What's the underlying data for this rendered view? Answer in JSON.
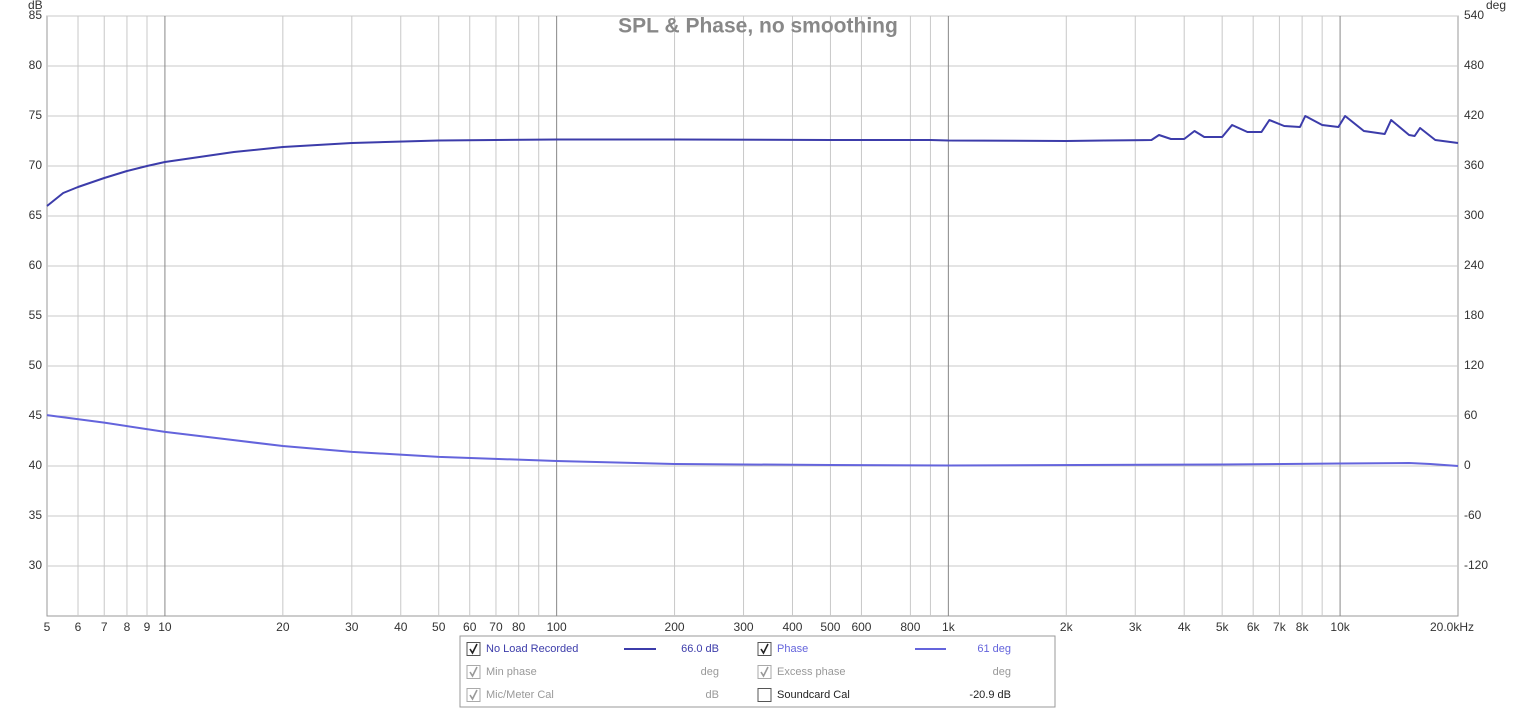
{
  "chart_data": {
    "type": "line",
    "title": "SPL & Phase, no smoothing",
    "ylabel": "dB",
    "y2label": "deg",
    "xscale": "log",
    "grid": true,
    "xlim": [
      5,
      20000
    ],
    "xticks": [
      5,
      6,
      7,
      8,
      9,
      10,
      20,
      30,
      40,
      50,
      60,
      70,
      80,
      100,
      200,
      300,
      400,
      500,
      600,
      800,
      {
        "value": 1000,
        "label": "1k"
      },
      {
        "value": 2000,
        "label": "2k"
      },
      {
        "value": 3000,
        "label": "3k"
      },
      {
        "value": 4000,
        "label": "4k"
      },
      {
        "value": 5000,
        "label": "5k"
      },
      {
        "value": 6000,
        "label": "6k"
      },
      {
        "value": 7000,
        "label": "7k"
      },
      {
        "value": 8000,
        "label": "8k"
      },
      {
        "value": 10000,
        "label": "10k"
      },
      {
        "value": 20000,
        "label": "20.0kHz"
      }
    ],
    "x_minor_ticks": [
      90,
      900,
      9000
    ],
    "ylim": [
      25,
      85
    ],
    "yticks": [
      30,
      35,
      40,
      45,
      50,
      55,
      60,
      65,
      70,
      75,
      80,
      85
    ],
    "y2lim": [
      -180,
      540
    ],
    "y2ticks": [
      -120,
      -60,
      0,
      60,
      120,
      180,
      240,
      300,
      360,
      420,
      480,
      540
    ],
    "series": [
      {
        "name": "No Load Recorded",
        "color": "#3c3caa",
        "readout": "66.0 dB",
        "checked": true,
        "x": [
          5,
          5.5,
          6,
          7,
          8,
          9,
          10,
          15,
          20,
          30,
          50,
          100,
          200,
          500,
          900,
          1000,
          2000,
          2500,
          3300,
          3450,
          3700,
          4000,
          4250,
          4500,
          5000,
          5300,
          5800,
          6300,
          6600,
          7200,
          7900,
          8150,
          9000,
          9900,
          10300,
          11500,
          13000,
          13500,
          15000,
          15500,
          16000,
          17500,
          20000
        ],
        "values": [
          66.0,
          67.3,
          67.9,
          68.8,
          69.5,
          70.0,
          70.4,
          71.4,
          71.9,
          72.3,
          72.55,
          72.65,
          72.65,
          72.6,
          72.6,
          72.55,
          72.5,
          72.55,
          72.6,
          73.1,
          72.7,
          72.7,
          73.5,
          72.9,
          72.9,
          74.1,
          73.4,
          73.4,
          74.6,
          74.0,
          73.9,
          75.0,
          74.1,
          73.9,
          75.0,
          73.5,
          73.2,
          74.6,
          73.1,
          73.0,
          73.8,
          72.6,
          72.3
        ]
      },
      {
        "name": "Phase",
        "color": "#6464dc",
        "axis": "y2",
        "readout": "61 deg",
        "checked": true,
        "x": [
          5,
          7,
          10,
          15,
          20,
          30,
          50,
          100,
          200,
          500,
          1000,
          5000,
          10000,
          15000,
          17000,
          20000
        ],
        "values": [
          61,
          52,
          41,
          31,
          24,
          17,
          11,
          6,
          2.4,
          1.2,
          0.6,
          1.8,
          3,
          3.6,
          2.4,
          0
        ]
      }
    ],
    "other_traces": [
      {
        "name": "Min phase",
        "readout": "deg",
        "checked": true,
        "enabled": false
      },
      {
        "name": "Excess phase",
        "readout": "deg",
        "checked": true,
        "enabled": false
      },
      {
        "name": "Mic/Meter Cal",
        "readout": "dB",
        "checked": true,
        "enabled": false
      },
      {
        "name": "Soundcard Cal",
        "readout": "-20.9 dB",
        "checked": false,
        "enabled": true
      }
    ]
  }
}
